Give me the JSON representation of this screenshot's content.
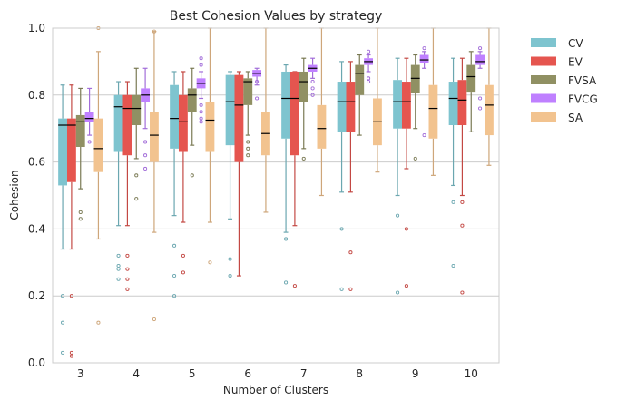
{
  "chart_data": {
    "type": "box",
    "title": "Best Cohesion Values by strategy",
    "xlabel": "Number of Clusters",
    "ylabel": "Cohesion",
    "ylim": [
      0,
      1.0
    ],
    "yticks": [
      0.0,
      0.2,
      0.4,
      0.6,
      0.8,
      1.0
    ],
    "ytick_labels": [
      "0.0",
      "0.2",
      "0.4",
      "0.6",
      "0.8",
      "1.0"
    ],
    "grid": true,
    "legend_position": "outside-right",
    "categories": [
      "3",
      "4",
      "5",
      "6",
      "7",
      "8",
      "9",
      "10"
    ],
    "colors": {
      "CV": "#7ec4cf",
      "EV": "#e5554f",
      "FVSA": "#909063",
      "FVCG": "#bf80ff",
      "SA": "#f2c38f"
    },
    "series": [
      {
        "name": "CV",
        "boxes": [
          {
            "whislo": 0.34,
            "q1": 0.53,
            "med": 0.71,
            "q3": 0.73,
            "whishi": 0.83,
            "fliers": [
              0.2,
              0.12,
              0.03
            ]
          },
          {
            "whislo": 0.41,
            "q1": 0.63,
            "med": 0.765,
            "q3": 0.8,
            "whishi": 0.84,
            "fliers": [
              0.32,
              0.29,
              0.28,
              0.25
            ]
          },
          {
            "whislo": 0.44,
            "q1": 0.64,
            "med": 0.73,
            "q3": 0.83,
            "whishi": 0.87,
            "fliers": [
              0.35,
              0.26,
              0.2
            ]
          },
          {
            "whislo": 0.43,
            "q1": 0.65,
            "med": 0.78,
            "q3": 0.86,
            "whishi": 0.87,
            "fliers": [
              0.31,
              0.26
            ]
          },
          {
            "whislo": 0.39,
            "q1": 0.67,
            "med": 0.79,
            "q3": 0.87,
            "whishi": 0.89,
            "fliers": [
              0.37,
              0.24
            ]
          },
          {
            "whislo": 0.51,
            "q1": 0.69,
            "med": 0.78,
            "q3": 0.84,
            "whishi": 0.9,
            "fliers": [
              0.4,
              0.22
            ]
          },
          {
            "whislo": 0.5,
            "q1": 0.7,
            "med": 0.78,
            "q3": 0.845,
            "whishi": 0.91,
            "fliers": [
              0.44,
              0.21
            ]
          },
          {
            "whislo": 0.53,
            "q1": 0.71,
            "med": 0.79,
            "q3": 0.84,
            "whishi": 0.91,
            "fliers": [
              0.48,
              0.29
            ]
          }
        ]
      },
      {
        "name": "EV",
        "boxes": [
          {
            "whislo": 0.34,
            "q1": 0.54,
            "med": 0.71,
            "q3": 0.73,
            "whishi": 0.83,
            "fliers": [
              0.2,
              0.03,
              0.02
            ]
          },
          {
            "whislo": 0.41,
            "q1": 0.62,
            "med": 0.76,
            "q3": 0.8,
            "whishi": 0.84,
            "fliers": [
              0.32,
              0.28,
              0.25,
              0.22
            ]
          },
          {
            "whislo": 0.42,
            "q1": 0.63,
            "med": 0.72,
            "q3": 0.8,
            "whishi": 0.87,
            "fliers": [
              0.32,
              0.27
            ]
          },
          {
            "whislo": 0.26,
            "q1": 0.6,
            "med": 0.77,
            "q3": 0.86,
            "whishi": 0.87,
            "fliers": []
          },
          {
            "whislo": 0.41,
            "q1": 0.62,
            "med": 0.79,
            "q3": 0.87,
            "whishi": 0.87,
            "fliers": [
              0.23
            ]
          },
          {
            "whislo": 0.51,
            "q1": 0.69,
            "med": 0.78,
            "q3": 0.84,
            "whishi": 0.9,
            "fliers": [
              0.33,
              0.22
            ]
          },
          {
            "whislo": 0.58,
            "q1": 0.7,
            "med": 0.78,
            "q3": 0.84,
            "whishi": 0.91,
            "fliers": [
              0.4,
              0.23
            ]
          },
          {
            "whislo": 0.5,
            "q1": 0.71,
            "med": 0.785,
            "q3": 0.845,
            "whishi": 0.91,
            "fliers": [
              0.48,
              0.41,
              0.21
            ]
          }
        ]
      },
      {
        "name": "FVSA",
        "boxes": [
          {
            "whislo": 0.52,
            "q1": 0.645,
            "med": 0.72,
            "q3": 0.74,
            "whishi": 0.82,
            "fliers": [
              0.45,
              0.43
            ]
          },
          {
            "whislo": 0.61,
            "q1": 0.71,
            "med": 0.76,
            "q3": 0.8,
            "whishi": 0.88,
            "fliers": [
              0.56,
              0.49
            ]
          },
          {
            "whislo": 0.65,
            "q1": 0.75,
            "med": 0.8,
            "q3": 0.82,
            "whishi": 0.88,
            "fliers": [
              0.56
            ]
          },
          {
            "whislo": 0.68,
            "q1": 0.77,
            "med": 0.84,
            "q3": 0.85,
            "whishi": 0.87,
            "fliers": [
              0.66,
              0.64,
              0.62
            ]
          },
          {
            "whislo": 0.64,
            "q1": 0.78,
            "med": 0.84,
            "q3": 0.87,
            "whishi": 0.91,
            "fliers": [
              0.61
            ]
          },
          {
            "whislo": 0.68,
            "q1": 0.8,
            "med": 0.865,
            "q3": 0.89,
            "whishi": 0.92,
            "fliers": []
          },
          {
            "whislo": 0.7,
            "q1": 0.805,
            "med": 0.85,
            "q3": 0.89,
            "whishi": 0.92,
            "fliers": [
              0.61
            ]
          },
          {
            "whislo": 0.69,
            "q1": 0.81,
            "med": 0.855,
            "q3": 0.89,
            "whishi": 0.93,
            "fliers": []
          }
        ]
      },
      {
        "name": "FVCG",
        "boxes": [
          {
            "whislo": 0.68,
            "q1": 0.72,
            "med": 0.73,
            "q3": 0.75,
            "whishi": 0.82,
            "fliers": [
              0.66
            ]
          },
          {
            "whislo": 0.7,
            "q1": 0.78,
            "med": 0.8,
            "q3": 0.82,
            "whishi": 0.88,
            "fliers": [
              0.66,
              0.62,
              0.58
            ]
          },
          {
            "whislo": 0.79,
            "q1": 0.82,
            "med": 0.835,
            "q3": 0.85,
            "whishi": 0.87,
            "fliers": [
              0.91,
              0.89,
              0.77,
              0.75,
              0.73,
              0.72
            ]
          },
          {
            "whislo": 0.83,
            "q1": 0.855,
            "med": 0.865,
            "q3": 0.875,
            "whishi": 0.88,
            "fliers": [
              0.84,
              0.79
            ]
          },
          {
            "whislo": 0.85,
            "q1": 0.87,
            "med": 0.88,
            "q3": 0.89,
            "whishi": 0.91,
            "fliers": [
              0.84,
              0.82,
              0.8
            ]
          },
          {
            "whislo": 0.87,
            "q1": 0.89,
            "med": 0.9,
            "q3": 0.91,
            "whishi": 0.92,
            "fliers": [
              0.93,
              0.85,
              0.84
            ]
          },
          {
            "whislo": 0.88,
            "q1": 0.895,
            "med": 0.905,
            "q3": 0.92,
            "whishi": 0.93,
            "fliers": [
              0.94,
              0.68
            ]
          },
          {
            "whislo": 0.88,
            "q1": 0.89,
            "med": 0.9,
            "q3": 0.92,
            "whishi": 0.93,
            "fliers": [
              0.94,
              0.79,
              0.76
            ]
          }
        ]
      },
      {
        "name": "SA",
        "boxes": [
          {
            "whislo": 0.37,
            "q1": 0.57,
            "med": 0.64,
            "q3": 0.73,
            "whishi": 0.93,
            "fliers": [
              1.0,
              0.12
            ]
          },
          {
            "whislo": 0.39,
            "q1": 0.6,
            "med": 0.68,
            "q3": 0.75,
            "whishi": 0.99,
            "fliers": [
              0.99,
              0.13
            ]
          },
          {
            "whislo": 0.42,
            "q1": 0.63,
            "med": 0.725,
            "q3": 0.78,
            "whishi": 1.0,
            "fliers": [
              0.3
            ]
          },
          {
            "whislo": 0.45,
            "q1": 0.62,
            "med": 0.685,
            "q3": 0.75,
            "whishi": 1.0,
            "fliers": []
          },
          {
            "whislo": 0.5,
            "q1": 0.64,
            "med": 0.7,
            "q3": 0.77,
            "whishi": 1.0,
            "fliers": []
          },
          {
            "whislo": 0.57,
            "q1": 0.65,
            "med": 0.72,
            "q3": 0.79,
            "whishi": 1.0,
            "fliers": []
          },
          {
            "whislo": 0.56,
            "q1": 0.67,
            "med": 0.76,
            "q3": 0.83,
            "whishi": 1.0,
            "fliers": []
          },
          {
            "whislo": 0.59,
            "q1": 0.68,
            "med": 0.77,
            "q3": 0.83,
            "whishi": 1.0,
            "fliers": []
          }
        ]
      }
    ]
  }
}
